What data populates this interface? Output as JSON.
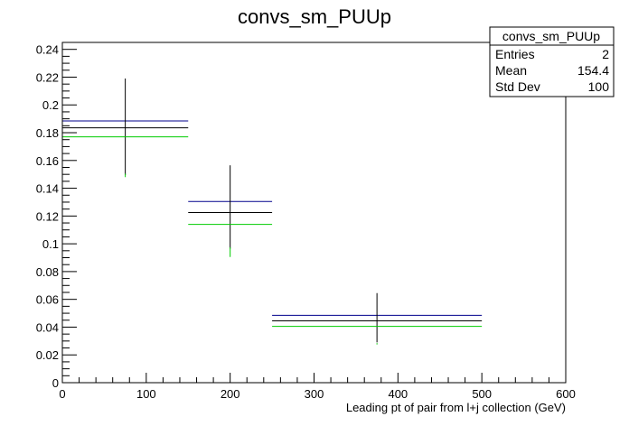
{
  "chart_data": {
    "type": "histogram-errorbars",
    "title": "convs_sm_PUUp",
    "xlabel": "Leading pt of pair from l+j collection (GeV)",
    "ylabel": "",
    "xlim": [
      0,
      600
    ],
    "ylim": [
      0,
      0.245
    ],
    "x_ticks": [
      0,
      100,
      200,
      300,
      400,
      500,
      600
    ],
    "y_ticks": [
      0,
      0.02,
      0.04,
      0.06,
      0.08,
      0.1,
      0.12,
      0.14,
      0.16,
      0.18,
      0.2,
      0.22,
      0.24
    ],
    "x_tick_labels": [
      "0",
      "100",
      "200",
      "300",
      "400",
      "500",
      "600"
    ],
    "y_tick_labels": [
      "0",
      "0.02",
      "0.04",
      "0.06",
      "0.08",
      "0.1",
      "0.12",
      "0.14",
      "0.16",
      "0.18",
      "0.2",
      "0.22",
      "0.24"
    ],
    "bins": [
      {
        "x_low": 0,
        "x_high": 150,
        "center": 75
      },
      {
        "x_low": 150,
        "x_high": 250,
        "center": 200
      },
      {
        "x_low": 250,
        "x_high": 500,
        "center": 375
      }
    ],
    "series": [
      {
        "color": "#00008b",
        "values": [
          0.1885,
          0.1305,
          0.0485
        ]
      },
      {
        "color": "#000000",
        "values": [
          0.1835,
          0.1225,
          0.0445
        ],
        "err_low": [
          0.1495,
          0.0965,
          0.029
        ],
        "err_high": [
          0.219,
          0.1565,
          0.0645
        ]
      },
      {
        "color": "#00cc00",
        "values": [
          0.177,
          0.114,
          0.0405
        ],
        "err_low": [
          0.148,
          0.0905,
          0.0275
        ],
        "err_high": [
          0.1505,
          0.0975,
          0.0285
        ]
      }
    ],
    "stats": {
      "title": "convs_sm_PUUp",
      "rows": [
        {
          "label": "Entries",
          "value": "2"
        },
        {
          "label": "Mean",
          "value": "154.4"
        },
        {
          "label": "Std Dev",
          "value": "100"
        }
      ]
    },
    "grid": false,
    "legend": "none"
  }
}
